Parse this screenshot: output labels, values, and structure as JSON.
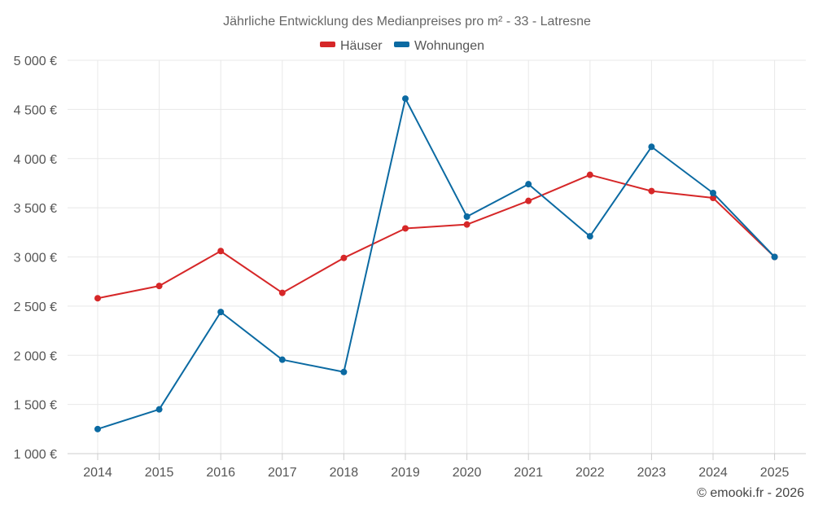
{
  "chart_data": {
    "type": "line",
    "title": "Jährliche Entwicklung des Medianpreises pro m² - 33 - Latresne",
    "categories": [
      "2014",
      "2015",
      "2016",
      "2017",
      "2018",
      "2019",
      "2020",
      "2021",
      "2022",
      "2023",
      "2024",
      "2025"
    ],
    "ylim": [
      1000,
      5000
    ],
    "y_ticks": [
      1000,
      1500,
      2000,
      2500,
      3000,
      3500,
      4000,
      4500,
      5000
    ],
    "y_tick_labels": [
      "1 000 €",
      "1 500 €",
      "2 000 €",
      "2 500 €",
      "3 000 €",
      "3 500 €",
      "4 000 €",
      "4 500 €",
      "5 000 €"
    ],
    "grid": true,
    "legend_position": "top-center",
    "series": [
      {
        "name": "Häuser",
        "color": "#d62728",
        "values": [
          2580,
          2705,
          3060,
          2635,
          2990,
          3290,
          3330,
          3570,
          3835,
          3670,
          3600,
          3000
        ]
      },
      {
        "name": "Wohnungen",
        "color": "#0b6aa2",
        "values": [
          1250,
          1450,
          2440,
          1955,
          1830,
          4610,
          3410,
          3740,
          3210,
          4120,
          3650,
          3000
        ]
      }
    ]
  },
  "credit": "© emooki.fr - 2026"
}
